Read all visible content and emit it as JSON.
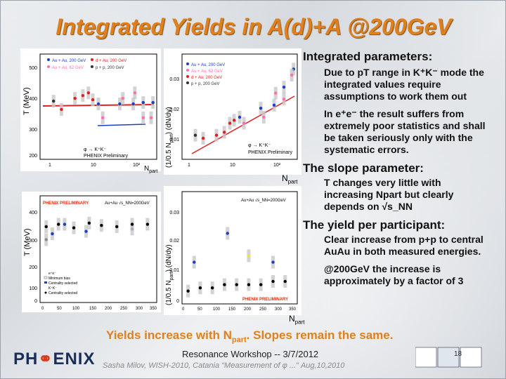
{
  "slide": {
    "title": "Integrated Yields in A(d)+A @200GeV",
    "bottom_line": "Yields increase with N",
    "bottom_line_sub": "part",
    "bottom_line_end": ". Slopes remain the same.",
    "footer_workshop": "Resonance Workshop -- 3/7/2012",
    "footer_ghost": "Sasha Milov, WISH-2010, Catania      \"Measurement of φ ...\"      Aug,10,2010",
    "page_number": "18",
    "logo_text_left": "PH",
    "logo_text_o": "⚭",
    "logo_text_right": "ENIX"
  },
  "text": {
    "integrated_head": "Integrated parameters:",
    "integrated_body": "Due to pT range in K⁺K⁻ mode the integrated values require assumptions to work them out",
    "integrated_note": "In e⁺e⁻ the result suffers from extremely poor statistics and shall be taken seriously only with the systematic errors.",
    "slope_head": "The slope parameter:",
    "slope_body": "T changes very little with increasing Npart but clearly depends on √s_NN",
    "yield_head": "The yield per participant:",
    "yield_body": "Clear increase from p+p to central AuAu in both measured energies.",
    "yield_note": "@200GeV the increase is approximately by a factor of 3"
  },
  "plots": {
    "tl": {
      "ylabel": "T (MeV)",
      "xlabel": "N",
      "xlabel_sub": "part",
      "yticks": [
        "500",
        "400",
        "300",
        "200"
      ],
      "xticks": [
        "1",
        "10",
        "10²"
      ],
      "legend": [
        "Au + Au, 200 GeV",
        "Au + Au, 62 GeV",
        "d + Au, 200 GeV",
        "p + p, 200 GeV"
      ],
      "legend_colors": [
        "#1f3fbf",
        "#ff6fb0",
        "#e02020",
        "#333333"
      ],
      "annot1": "φ → K⁺K⁻",
      "annot2": "PHENIX Preliminary"
    },
    "tr": {
      "ylabel": "(1/0.5 N",
      "ylabel_sub": "part",
      "ylabel_end": ") (dN/dy)",
      "xlabel": "N",
      "xlabel_sub": "part",
      "yticks": [
        "0.03",
        "0.02",
        "0.01"
      ],
      "xticks": [
        "1",
        "10",
        "10²"
      ],
      "legend": [
        "Au + Au, 200 GeV",
        "Au + Au, 62 GeV",
        "d + Au, 200 GeV",
        "p + p, 200 GeV"
      ],
      "legend_colors": [
        "#1f3fbf",
        "#ff6fb0",
        "#e02020",
        "#333333"
      ],
      "annot1": "φ → K⁺K⁻",
      "annot2": "PHENIX Preliminary"
    },
    "bl": {
      "ylabel": "T (MeV)",
      "header_left": "PHENIX PRELIMINARY",
      "header_right": "Au+Au √s_NN=200GeV",
      "yticks": [
        "400",
        "300",
        "200",
        "100",
        "0"
      ],
      "xticks": [
        "0",
        "50",
        "100",
        "150",
        "200",
        "250",
        "300",
        "350"
      ],
      "legend": [
        "e⁺e⁻",
        "Minimum bias",
        "Centrality selected",
        "K⁺K⁻",
        "Centrality selected"
      ]
    },
    "br": {
      "ylabel": "(1/0.5 N",
      "ylabel_sub": "part",
      "ylabel_end": ") (dN/dy)",
      "header": "Au+Au √s_NN=200GeV",
      "yticks": [
        "0.03",
        "0.02",
        "0.01",
        "0"
      ],
      "xticks": [
        "0",
        "50",
        "100",
        "150",
        "200",
        "250",
        "300",
        "350"
      ],
      "xlabel": "N",
      "xlabel_sub": "part",
      "annot": "PHENIX PRELIMINARY"
    }
  },
  "chart_data": [
    {
      "type": "scatter",
      "title": "",
      "ylabel": "T (MeV)",
      "xlabel": "Npart",
      "xscale": "log",
      "xlim": [
        1,
        400
      ],
      "ylim": [
        180,
        560
      ],
      "series": [
        {
          "name": "Au + Au, 200 GeV",
          "x": [
            20,
            60,
            120,
            200,
            330
          ],
          "y": [
            380,
            380,
            380,
            385,
            385
          ]
        },
        {
          "name": "Au + Au, 62 GeV",
          "x": [
            25,
            70,
            130,
            200,
            300
          ],
          "y": [
            330,
            400,
            420,
            330,
            330
          ]
        },
        {
          "name": "d + Au, 200 GeV",
          "x": [
            3,
            6,
            9,
            12,
            15
          ],
          "y": [
            360,
            400,
            410,
            420,
            395
          ]
        },
        {
          "name": "p + p, 200 GeV",
          "x": [
            2
          ],
          "y": [
            390
          ]
        }
      ]
    },
    {
      "type": "scatter",
      "title": "",
      "ylabel": "(1/0.5 Npart) (dN/dy)",
      "xlabel": "Npart",
      "xscale": "log",
      "xlim": [
        1,
        400
      ],
      "ylim": [
        0.0,
        0.035
      ],
      "series": [
        {
          "name": "Au + Au, 200 GeV",
          "x": [
            20,
            60,
            120,
            200,
            330
          ],
          "y": [
            0.014,
            0.017,
            0.018,
            0.024,
            0.03
          ]
        },
        {
          "name": "Au + Au, 62 GeV",
          "x": [
            25,
            70,
            130,
            200,
            300
          ],
          "y": [
            0.012,
            0.014,
            0.022,
            0.02,
            0.028
          ]
        },
        {
          "name": "d + Au, 200 GeV",
          "x": [
            3,
            6,
            9,
            12,
            15
          ],
          "y": [
            0.007,
            0.008,
            0.009,
            0.012,
            0.013
          ]
        },
        {
          "name": "p + p, 200 GeV",
          "x": [
            2
          ],
          "y": [
            0.008
          ]
        }
      ]
    },
    {
      "type": "scatter",
      "title": "",
      "ylabel": "T (MeV)",
      "xlabel": "Npart",
      "xlim": [
        0,
        380
      ],
      "ylim": [
        0,
        450
      ],
      "series": [
        {
          "name": "e⁺e⁻ Minimum bias",
          "x": [
            20
          ],
          "y": [
            265
          ]
        },
        {
          "name": "e⁺e⁻ Centrality selected",
          "x": [
            40,
            80,
            150,
            300
          ],
          "y": [
            290,
            330,
            300,
            310
          ]
        },
        {
          "name": "K⁺K⁻ Centrality selected",
          "x": [
            20,
            60,
            110,
            160,
            200,
            250,
            300,
            350
          ],
          "y": [
            320,
            330,
            315,
            335,
            325,
            320,
            330,
            330
          ]
        }
      ]
    },
    {
      "type": "scatter",
      "title": "",
      "ylabel": "(1/0.5 Npart) (dN/dy)",
      "xlabel": "Npart",
      "xlim": [
        0,
        380
      ],
      "ylim": [
        0,
        0.035
      ],
      "series": [
        {
          "name": "e⁺e⁻ Minimum bias",
          "x": [
            220
          ],
          "y": [
            0.015
          ]
        },
        {
          "name": "e⁺e⁻ Centrality selected",
          "x": [
            40,
            150,
            300
          ],
          "y": [
            0.013,
            0.022,
            0.013
          ]
        },
        {
          "name": "K⁺K⁻ Centrality selected",
          "x": [
            20,
            60,
            100,
            140,
            180,
            220,
            260,
            300,
            340
          ],
          "y": [
            0.004,
            0.005,
            0.005,
            0.006,
            0.006,
            0.006,
            0.006,
            0.007,
            0.007
          ]
        }
      ]
    }
  ]
}
